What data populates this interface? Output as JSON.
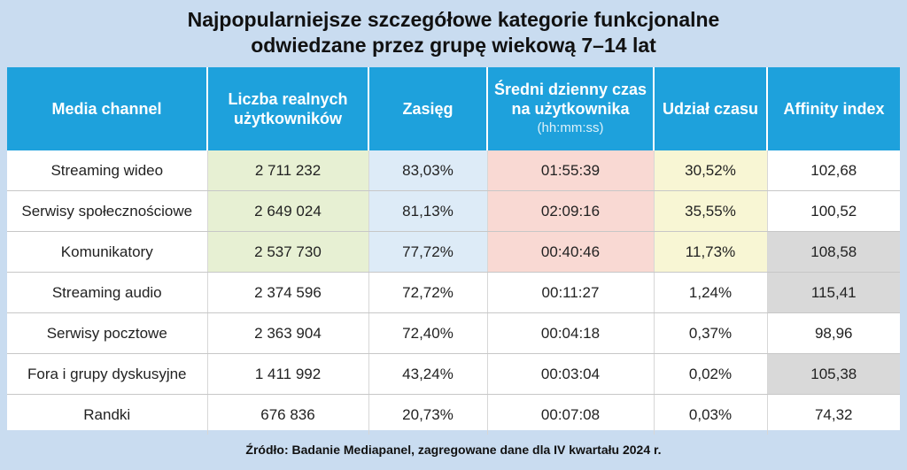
{
  "title": {
    "line1": "Najpopularniejsze szczegółowe kategorie funkcjonalne",
    "line2": "odwiedzane przez grupę wiekową 7–14 lat"
  },
  "colors": {
    "header_bg": "#1ea1dc",
    "page_bg": "#c9dcf0",
    "highlight_green": "#e7f0d3",
    "highlight_blue": "#ddebf7",
    "highlight_pink": "#f9d9d3",
    "highlight_yellow": "#f8f6d4",
    "highlight_gray": "#d9d9d9"
  },
  "chart_data": {
    "type": "table",
    "columns": [
      "Media channel",
      "Liczba realnych użytkowników",
      "Zasięg",
      "Średni dzienny czas na użytkownika (hh:mm:ss)",
      "Udział czasu",
      "Affinity index"
    ],
    "column_headers": {
      "channel": "Media channel",
      "users": "Liczba realnych użytkowników",
      "reach": "Zasięg",
      "time": "Średni dzienny czas na użytkownika",
      "time_sub": "(hh:mm:ss)",
      "share": "Udział czasu",
      "affinity": "Affinity index"
    },
    "rows": [
      {
        "channel": "Streaming wideo",
        "users": "2 711 232",
        "reach": "83,03%",
        "time": "01:55:39",
        "share": "30,52%",
        "affinity": "102,68"
      },
      {
        "channel": "Serwisy społecznościowe",
        "users": "2 649 024",
        "reach": "81,13%",
        "time": "02:09:16",
        "share": "35,55%",
        "affinity": "100,52"
      },
      {
        "channel": "Komunikatory",
        "users": "2 537 730",
        "reach": "77,72%",
        "time": "00:40:46",
        "share": "11,73%",
        "affinity": "108,58"
      },
      {
        "channel": "Streaming audio",
        "users": "2 374 596",
        "reach": "72,72%",
        "time": "00:11:27",
        "share": "1,24%",
        "affinity": "115,41"
      },
      {
        "channel": "Serwisy pocztowe",
        "users": "2 363 904",
        "reach": "72,40%",
        "time": "00:04:18",
        "share": "0,37%",
        "affinity": "98,96"
      },
      {
        "channel": "Fora i grupy dyskusyjne",
        "users": "1 411 992",
        "reach": "43,24%",
        "time": "00:03:04",
        "share": "0,02%",
        "affinity": "105,38"
      },
      {
        "channel": "Randki",
        "users": "676 836",
        "reach": "20,73%",
        "time": "00:07:08",
        "share": "0,03%",
        "affinity": "74,32"
      }
    ]
  },
  "footer": "Źródło: Badanie Mediapanel, zagregowane dane dla IV kwartału 2024 r."
}
